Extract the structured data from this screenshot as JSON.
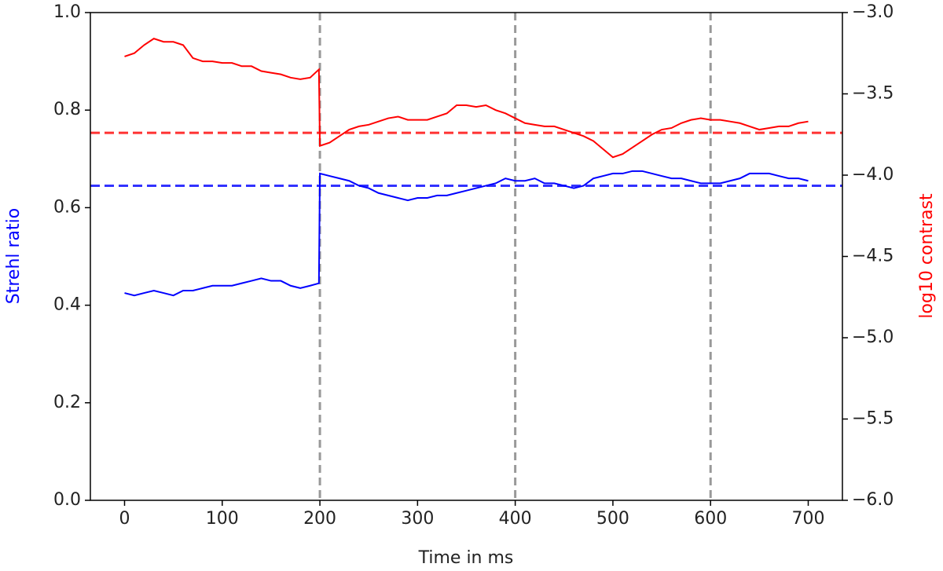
{
  "chart_data": {
    "type": "line",
    "xlabel": "Time in ms",
    "ylabel": "Strehl ratio",
    "y2label": "log10 contrast",
    "ylabel_color": "#0000ff",
    "y2label_color": "#ff0000",
    "x": [
      0,
      10,
      20,
      30,
      40,
      50,
      60,
      70,
      80,
      90,
      100,
      110,
      120,
      130,
      140,
      150,
      160,
      170,
      180,
      190,
      199,
      200,
      210,
      220,
      230,
      240,
      250,
      260,
      270,
      280,
      290,
      300,
      310,
      320,
      330,
      340,
      350,
      360,
      370,
      380,
      390,
      400,
      410,
      420,
      430,
      440,
      450,
      460,
      470,
      480,
      490,
      500,
      510,
      520,
      530,
      540,
      550,
      560,
      570,
      580,
      590,
      600,
      610,
      620,
      630,
      640,
      650,
      660,
      670,
      680,
      690,
      700
    ],
    "series": [
      {
        "name": "Strehl ratio",
        "color": "#0000ff",
        "values": [
          0.425,
          0.42,
          0.425,
          0.43,
          0.425,
          0.42,
          0.43,
          0.43,
          0.435,
          0.44,
          0.44,
          0.44,
          0.445,
          0.45,
          0.455,
          0.45,
          0.45,
          0.44,
          0.435,
          0.44,
          0.445,
          0.67,
          0.665,
          0.66,
          0.655,
          0.645,
          0.64,
          0.63,
          0.625,
          0.62,
          0.615,
          0.62,
          0.62,
          0.625,
          0.625,
          0.63,
          0.635,
          0.64,
          0.645,
          0.65,
          0.66,
          0.655,
          0.655,
          0.66,
          0.65,
          0.65,
          0.645,
          0.64,
          0.645,
          0.66,
          0.665,
          0.67,
          0.67,
          0.675,
          0.675,
          0.67,
          0.665,
          0.66,
          0.66,
          0.655,
          0.65,
          0.65,
          0.65,
          0.655,
          0.66,
          0.67,
          0.67,
          0.67,
          0.665,
          0.66,
          0.66,
          0.655
        ]
      },
      {
        "name": "log10 contrast",
        "color": "#ff0000",
        "axis": "y2",
        "values": [
          -3.27,
          -3.25,
          -3.2,
          -3.16,
          -3.18,
          -3.18,
          -3.2,
          -3.28,
          -3.3,
          -3.3,
          -3.31,
          -3.31,
          -3.33,
          -3.33,
          -3.36,
          -3.37,
          -3.38,
          -3.4,
          -3.41,
          -3.4,
          -3.35,
          -3.82,
          -3.8,
          -3.76,
          -3.72,
          -3.7,
          -3.69,
          -3.67,
          -3.65,
          -3.64,
          -3.66,
          -3.66,
          -3.66,
          -3.64,
          -3.62,
          -3.57,
          -3.57,
          -3.58,
          -3.57,
          -3.6,
          -3.62,
          -3.65,
          -3.68,
          -3.69,
          -3.7,
          -3.7,
          -3.72,
          -3.74,
          -3.76,
          -3.79,
          -3.84,
          -3.89,
          -3.87,
          -3.83,
          -3.79,
          -3.75,
          -3.72,
          -3.71,
          -3.68,
          -3.66,
          -3.65,
          -3.66,
          -3.66,
          -3.67,
          -3.68,
          -3.7,
          -3.72,
          -3.71,
          -3.7,
          -3.7,
          -3.68,
          -3.67
        ]
      }
    ],
    "hlines": [
      {
        "value": 0.645,
        "color": "#0000ff"
      },
      {
        "value": -3.74,
        "axis": "y2",
        "color": "#ff0000"
      }
    ],
    "vlines": [
      200,
      400,
      600
    ],
    "vline_color": "#999999",
    "xlim": [
      -35,
      735
    ],
    "xticks": [
      0,
      100,
      200,
      300,
      400,
      500,
      600,
      700
    ],
    "ylim": [
      0,
      1
    ],
    "yticks": [
      {
        "value": 0,
        "label": "0.0"
      },
      0.2,
      0.4,
      0.6,
      0.8,
      {
        "value": 1,
        "label": "1.0"
      }
    ],
    "y2lim": [
      -6,
      -3
    ],
    "y2ticks": [
      {
        "value": -6,
        "label": "−6.0"
      },
      {
        "value": -5.5,
        "label": "−5.5"
      },
      {
        "value": -5,
        "label": "−5.0"
      },
      {
        "value": -4.5,
        "label": "−4.5"
      },
      {
        "value": -4,
        "label": "−4.0"
      },
      {
        "value": -3.5,
        "label": "−3.5"
      },
      {
        "value": -3,
        "label": "−3.0"
      }
    ]
  }
}
